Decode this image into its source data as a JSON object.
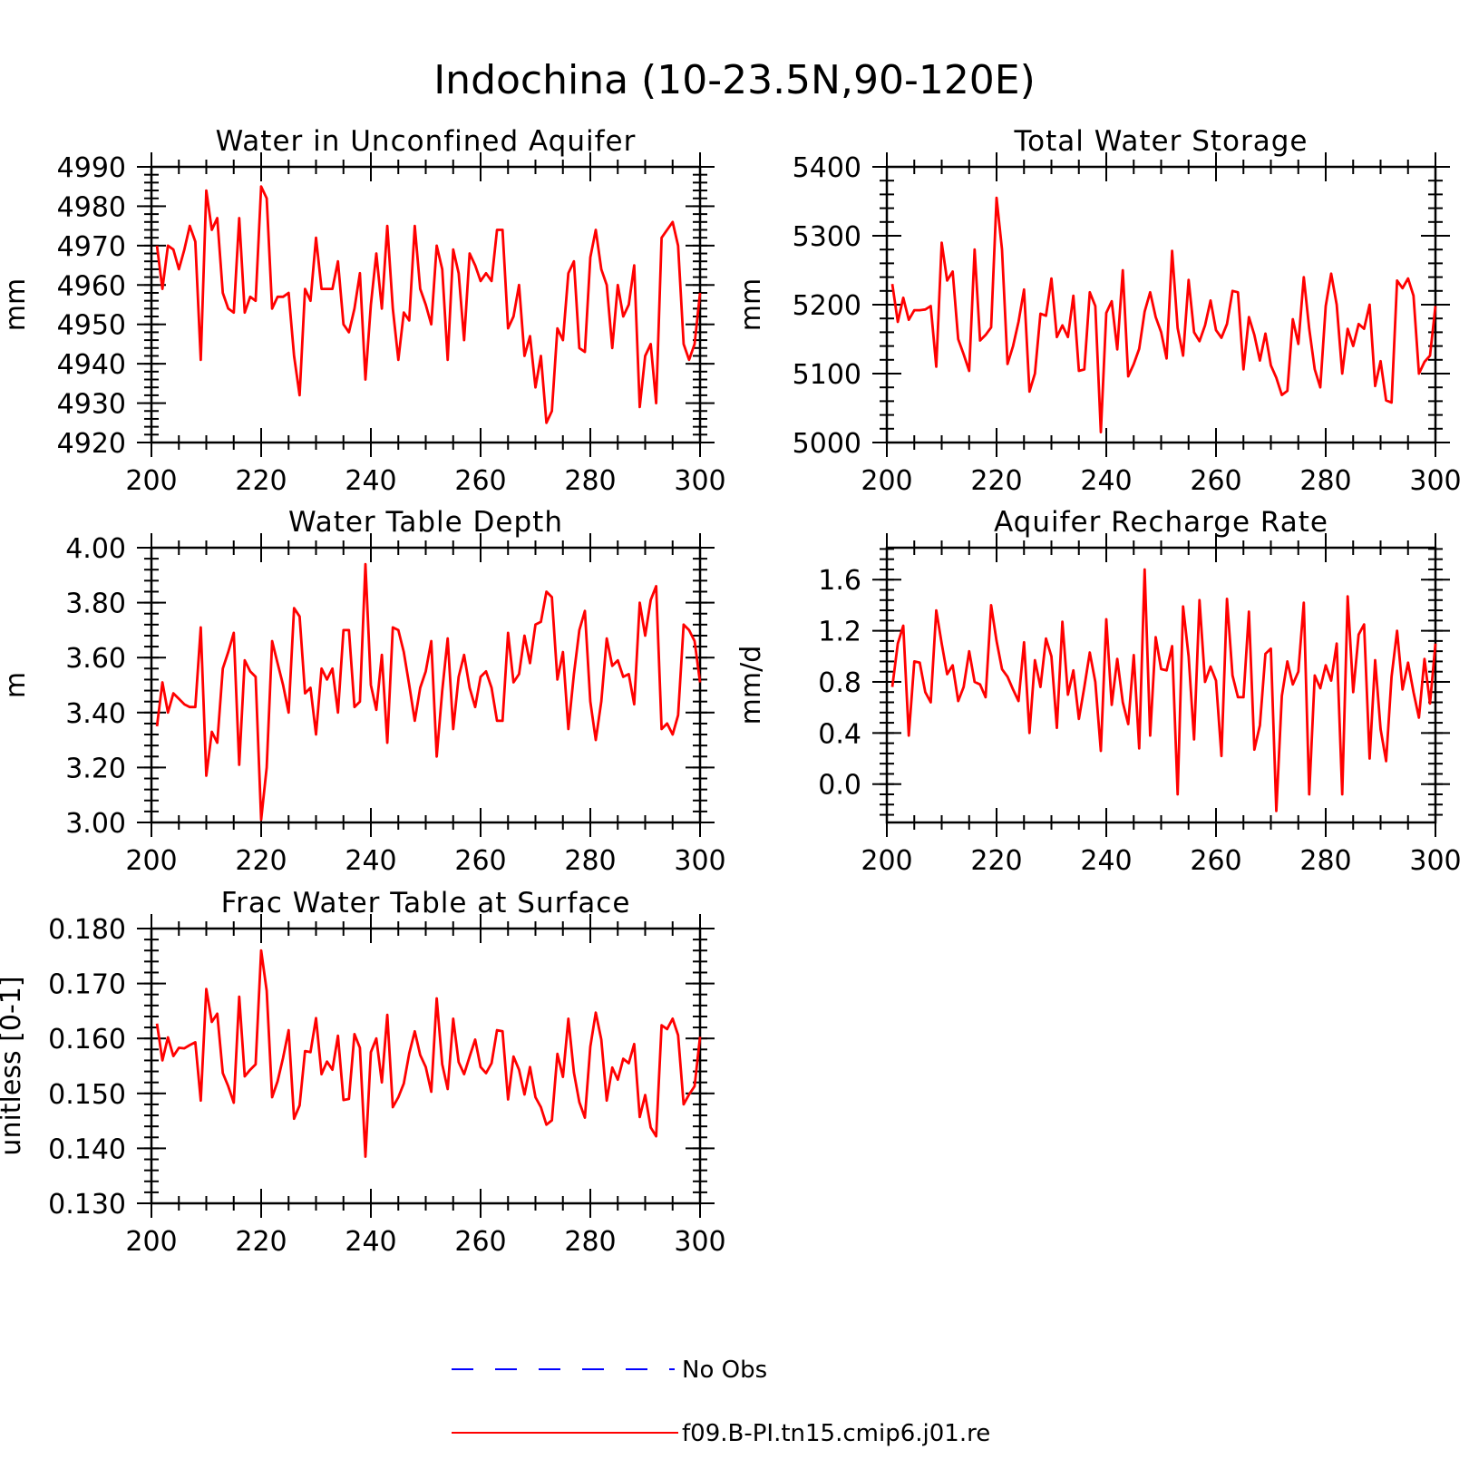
{
  "figure": {
    "title": "Indochina (10-23.5N,90-120E)",
    "legend": [
      {
        "label": "No Obs",
        "color": "#0000ff",
        "style": "dashed"
      },
      {
        "label": "f09.B-PI.tn15.cmip6.j01.re",
        "color": "#ff0000",
        "style": "solid"
      }
    ]
  },
  "chart_data": [
    {
      "type": "line",
      "title": "Water in Unconfined Aquifer",
      "ylabel": "mm",
      "xlim": [
        200,
        300
      ],
      "ylim": [
        4920,
        4990
      ],
      "xticks": [
        200,
        220,
        240,
        260,
        280,
        300
      ],
      "yticks": [
        4920,
        4930,
        4940,
        4950,
        4960,
        4970,
        4980,
        4990
      ],
      "ytick_labels": [
        "4920",
        "4930",
        "4940",
        "4950",
        "4960",
        "4970",
        "4980",
        "4990"
      ],
      "color": "#ff0000",
      "x_start": 201,
      "values": [
        4970,
        4959,
        4970,
        4969,
        4964,
        4969,
        4975,
        4971,
        4941,
        4984,
        4974,
        4977,
        4958,
        4954,
        4953,
        4977,
        4953,
        4957,
        4956,
        4985,
        4982,
        4954,
        4957,
        4957,
        4958,
        4942,
        4932,
        4959,
        4956,
        4972,
        4959,
        4959,
        4959,
        4966,
        4950,
        4948,
        4954,
        4963,
        4936,
        4955,
        4968,
        4954,
        4975,
        4954,
        4941,
        4953,
        4951,
        4975,
        4959,
        4955,
        4950,
        4970,
        4964,
        4941,
        4969,
        4963,
        4946,
        4968,
        4965,
        4961,
        4963,
        4961,
        4974,
        4974,
        4949,
        4952,
        4960,
        4942,
        4947,
        4934,
        4942,
        4925,
        4928,
        4949,
        4946,
        4963,
        4966,
        4944,
        4943,
        4967,
        4974,
        4964,
        4960,
        4944,
        4960,
        4952,
        4955,
        4965,
        4929,
        4942,
        4945,
        4930,
        4972,
        4974,
        4976,
        4970,
        4945,
        4941,
        4945,
        4958
      ]
    },
    {
      "type": "line",
      "title": "Total Water Storage",
      "ylabel": "mm",
      "xlim": [
        200,
        300
      ],
      "ylim": [
        5000,
        5400
      ],
      "xticks": [
        200,
        220,
        240,
        260,
        280,
        300
      ],
      "yticks": [
        5000,
        5100,
        5200,
        5300,
        5400
      ],
      "ytick_labels": [
        "5000",
        "5100",
        "5200",
        "5300",
        "5400"
      ],
      "color": "#ff0000",
      "x_start": 201,
      "values": [
        5230,
        5175,
        5210,
        5178,
        5192,
        5192,
        5193,
        5198,
        5110,
        5290,
        5235,
        5248,
        5150,
        5128,
        5104,
        5280,
        5148,
        5156,
        5167,
        5355,
        5280,
        5114,
        5140,
        5175,
        5222,
        5074,
        5100,
        5187,
        5184,
        5238,
        5153,
        5170,
        5153,
        5213,
        5104,
        5106,
        5218,
        5198,
        5015,
        5188,
        5205,
        5135,
        5250,
        5096,
        5114,
        5136,
        5190,
        5218,
        5182,
        5160,
        5122,
        5278,
        5166,
        5126,
        5236,
        5160,
        5147,
        5170,
        5206,
        5163,
        5152,
        5172,
        5220,
        5218,
        5106,
        5182,
        5156,
        5119,
        5158,
        5112,
        5094,
        5069,
        5075,
        5179,
        5143,
        5240,
        5165,
        5106,
        5080,
        5198,
        5245,
        5200,
        5100,
        5165,
        5140,
        5172,
        5165,
        5200,
        5082,
        5118,
        5061,
        5058,
        5235,
        5224,
        5238,
        5213,
        5100,
        5117,
        5126,
        5198
      ]
    },
    {
      "type": "line",
      "title": "Water Table Depth",
      "ylabel": "m",
      "xlim": [
        200,
        300
      ],
      "ylim": [
        3.0,
        4.0
      ],
      "xticks": [
        200,
        220,
        240,
        260,
        280,
        300
      ],
      "yticks": [
        3.0,
        3.2,
        3.4,
        3.6,
        3.8,
        4.0
      ],
      "ytick_labels": [
        "3.00",
        "3.20",
        "3.40",
        "3.60",
        "3.80",
        "4.00"
      ],
      "color": "#ff0000",
      "x_start": 201,
      "values": [
        3.35,
        3.51,
        3.4,
        3.47,
        3.45,
        3.43,
        3.42,
        3.42,
        3.71,
        3.17,
        3.33,
        3.29,
        3.56,
        3.62,
        3.69,
        3.21,
        3.59,
        3.55,
        3.53,
        3.01,
        3.2,
        3.66,
        3.58,
        3.5,
        3.4,
        3.78,
        3.75,
        3.47,
        3.49,
        3.32,
        3.56,
        3.52,
        3.56,
        3.4,
        3.7,
        3.7,
        3.42,
        3.44,
        3.94,
        3.5,
        3.41,
        3.61,
        3.29,
        3.71,
        3.7,
        3.62,
        3.5,
        3.37,
        3.49,
        3.55,
        3.66,
        3.24,
        3.48,
        3.67,
        3.34,
        3.53,
        3.61,
        3.49,
        3.42,
        3.53,
        3.55,
        3.49,
        3.37,
        3.37,
        3.69,
        3.51,
        3.54,
        3.68,
        3.58,
        3.72,
        3.73,
        3.84,
        3.82,
        3.52,
        3.62,
        3.34,
        3.54,
        3.7,
        3.77,
        3.44,
        3.3,
        3.44,
        3.67,
        3.57,
        3.59,
        3.53,
        3.54,
        3.43,
        3.8,
        3.68,
        3.81,
        3.86,
        3.34,
        3.36,
        3.32,
        3.39,
        3.72,
        3.7,
        3.66,
        3.51
      ]
    },
    {
      "type": "line",
      "title": "Aquifer Recharge Rate",
      "ylabel": "mm/d",
      "xlim": [
        200,
        300
      ],
      "ylim": [
        -0.3,
        1.85
      ],
      "xticks": [
        200,
        220,
        240,
        260,
        280,
        300
      ],
      "yticks": [
        0.0,
        0.4,
        0.8,
        1.2,
        1.6
      ],
      "ytick_labels": [
        "0.0",
        "0.4",
        "0.8",
        "1.2",
        "1.6"
      ],
      "color": "#ff0000",
      "x_start": 201,
      "values": [
        0.76,
        1.1,
        1.24,
        0.38,
        0.96,
        0.95,
        0.72,
        0.64,
        1.36,
        1.1,
        0.86,
        0.93,
        0.65,
        0.76,
        1.04,
        0.8,
        0.78,
        0.68,
        1.4,
        1.12,
        0.9,
        0.84,
        0.74,
        0.65,
        1.11,
        0.4,
        0.97,
        0.76,
        1.14,
        1.0,
        0.44,
        1.27,
        0.7,
        0.89,
        0.51,
        0.76,
        1.03,
        0.8,
        0.26,
        1.29,
        0.62,
        0.98,
        0.64,
        0.47,
        1.01,
        0.28,
        1.68,
        0.38,
        1.15,
        0.9,
        0.89,
        1.08,
        -0.08,
        1.39,
        1.0,
        0.35,
        1.44,
        0.8,
        0.92,
        0.81,
        0.22,
        1.45,
        0.85,
        0.68,
        0.68,
        1.35,
        0.27,
        0.46,
        1.02,
        1.06,
        -0.21,
        0.69,
        0.96,
        0.78,
        0.88,
        1.42,
        -0.08,
        0.85,
        0.75,
        0.93,
        0.81,
        1.1,
        -0.08,
        1.47,
        0.72,
        1.17,
        1.25,
        0.2,
        0.97,
        0.43,
        0.18,
        0.84,
        1.2,
        0.74,
        0.95,
        0.72,
        0.52,
        0.98,
        0.63,
        1.1
      ]
    },
    {
      "type": "line",
      "title": "Frac Water Table at Surface",
      "ylabel": "unitless [0-1]",
      "xlim": [
        200,
        300
      ],
      "ylim": [
        0.13,
        0.18
      ],
      "xticks": [
        200,
        220,
        240,
        260,
        280,
        300
      ],
      "yticks": [
        0.13,
        0.14,
        0.15,
        0.16,
        0.17,
        0.18
      ],
      "ytick_labels": [
        "0.130",
        "0.140",
        "0.150",
        "0.160",
        "0.170",
        "0.180"
      ],
      "color": "#ff0000",
      "x_start": 201,
      "values": [
        0.1627,
        0.156,
        0.1602,
        0.1568,
        0.1583,
        0.1582,
        0.1588,
        0.1593,
        0.1487,
        0.169,
        0.163,
        0.1645,
        0.1537,
        0.1513,
        0.1483,
        0.1676,
        0.1531,
        0.1543,
        0.1553,
        0.176,
        0.1687,
        0.1493,
        0.1522,
        0.1565,
        0.1615,
        0.1454,
        0.1478,
        0.1577,
        0.1575,
        0.1637,
        0.1535,
        0.1558,
        0.1543,
        0.1605,
        0.1488,
        0.149,
        0.1608,
        0.1583,
        0.1385,
        0.1575,
        0.16,
        0.152,
        0.1643,
        0.1475,
        0.1493,
        0.1518,
        0.1573,
        0.1613,
        0.157,
        0.1548,
        0.1503,
        0.1673,
        0.1553,
        0.1508,
        0.1636,
        0.1557,
        0.1535,
        0.1567,
        0.1598,
        0.1548,
        0.1537,
        0.1555,
        0.1615,
        0.1613,
        0.1489,
        0.1567,
        0.1543,
        0.1498,
        0.1548,
        0.1493,
        0.1475,
        0.1443,
        0.1451,
        0.1572,
        0.153,
        0.1636,
        0.1538,
        0.1484,
        0.1456,
        0.1585,
        0.1647,
        0.1598,
        0.1487,
        0.1547,
        0.1525,
        0.1563,
        0.1555,
        0.159,
        0.1457,
        0.1497,
        0.1438,
        0.1422,
        0.1624,
        0.1617,
        0.1636,
        0.1606,
        0.148,
        0.1498,
        0.1513,
        0.1603
      ]
    }
  ]
}
